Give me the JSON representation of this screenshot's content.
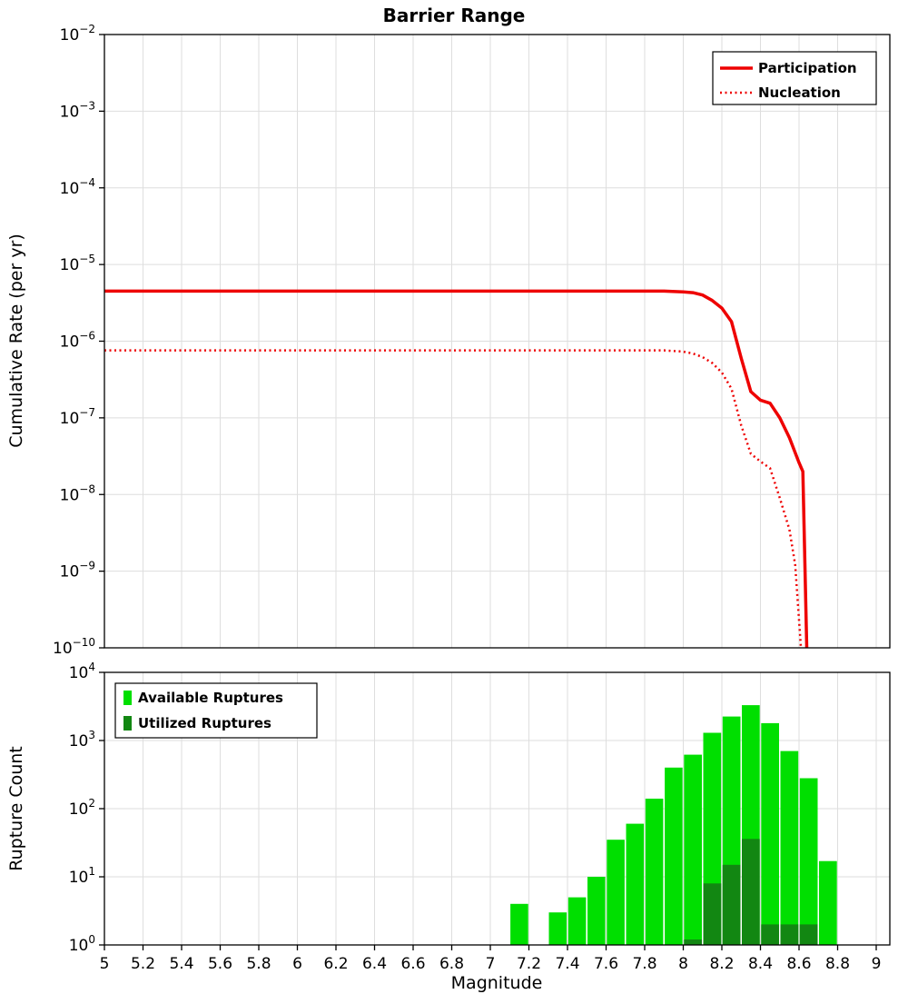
{
  "title": "Barrier Range",
  "colors": {
    "line_red": "#EE0000",
    "available_green": "#00DF00",
    "utilized_green": "#128712",
    "grid": "#DEDEDE",
    "axis": "#000000",
    "text": "#000000",
    "background": "#FFFFFF"
  },
  "chart_data": [
    {
      "type": "line",
      "title": "Barrier Range",
      "ylabel": "Cumulative Rate (per yr)",
      "xlabel": "",
      "x_axis": {
        "min": 5,
        "max": 9,
        "tick_labels_visible": false
      },
      "y_axis": {
        "scale": "log",
        "min_exp": -10,
        "max_exp": -2,
        "tick_exponents": [
          -2,
          -3,
          -4,
          -5,
          -6,
          -7,
          -8,
          -9,
          -10
        ]
      },
      "grid": true,
      "legend": {
        "position": "top-right"
      },
      "series": [
        {
          "name": "Participation",
          "style": "solid",
          "color": "#EE0000",
          "line_width": 3.5,
          "x": [
            5.0,
            7.9,
            8.0,
            8.05,
            8.1,
            8.15,
            8.2,
            8.25,
            8.3,
            8.35,
            8.4,
            8.45,
            8.5,
            8.55,
            8.6,
            8.62,
            8.64
          ],
          "y": [
            4.5e-06,
            4.5e-06,
            4.4e-06,
            4.3e-06,
            4e-06,
            3.4e-06,
            2.7e-06,
            1.8e-06,
            6e-07,
            2.2e-07,
            1.7e-07,
            1.55e-07,
            1e-07,
            5.5e-08,
            2.6e-08,
            2e-08,
            1e-10
          ]
        },
        {
          "name": "Nucleation",
          "style": "dotted",
          "color": "#EE0000",
          "line_width": 2.5,
          "x": [
            5.0,
            7.9,
            8.0,
            8.05,
            8.1,
            8.15,
            8.2,
            8.25,
            8.3,
            8.35,
            8.4,
            8.45,
            8.5,
            8.55,
            8.58,
            8.61
          ],
          "y": [
            7.6e-07,
            7.6e-07,
            7.3e-07,
            6.9e-07,
            6.2e-07,
            5.2e-07,
            3.9e-07,
            2.4e-07,
            8e-08,
            3.4e-08,
            2.7e-08,
            2.2e-08,
            9e-09,
            3.5e-09,
            1.2e-09,
            1e-10
          ]
        }
      ]
    },
    {
      "type": "bar",
      "title": "",
      "ylabel": "Rupture Count",
      "xlabel": "Magnitude",
      "x_axis": {
        "min": 5,
        "max": 9,
        "tick_labels": [
          "5",
          "5.2",
          "5.4",
          "5.6",
          "5.8",
          "6",
          "6.2",
          "6.4",
          "6.6",
          "6.8",
          "7",
          "7.2",
          "7.4",
          "7.6",
          "7.8",
          "8",
          "8.2",
          "8.4",
          "8.6",
          "8.8",
          "9"
        ]
      },
      "y_axis": {
        "scale": "log",
        "min_exp": 0,
        "max_exp": 4,
        "tick_exponents": [
          4,
          3,
          2,
          1,
          0
        ]
      },
      "grid": true,
      "legend": {
        "position": "top-left"
      },
      "bin_width": 0.1,
      "series": [
        {
          "name": "Available Ruptures",
          "color": "#00DF00",
          "bin_centers": [
            7.15,
            7.35,
            7.45,
            7.55,
            7.65,
            7.75,
            7.85,
            7.95,
            8.05,
            8.15,
            8.25,
            8.35,
            8.45,
            8.55,
            8.65,
            8.75
          ],
          "counts": [
            4,
            3,
            5,
            10,
            35,
            60,
            140,
            400,
            620,
            1300,
            2250,
            3300,
            1800,
            700,
            280,
            17
          ]
        },
        {
          "name": "Utilized Ruptures",
          "color": "#128712",
          "bin_centers": [
            8.05,
            8.15,
            8.25,
            8.35,
            8.45,
            8.55,
            8.65
          ],
          "counts": [
            1,
            8,
            15,
            36,
            2,
            2,
            2
          ]
        }
      ]
    }
  ]
}
